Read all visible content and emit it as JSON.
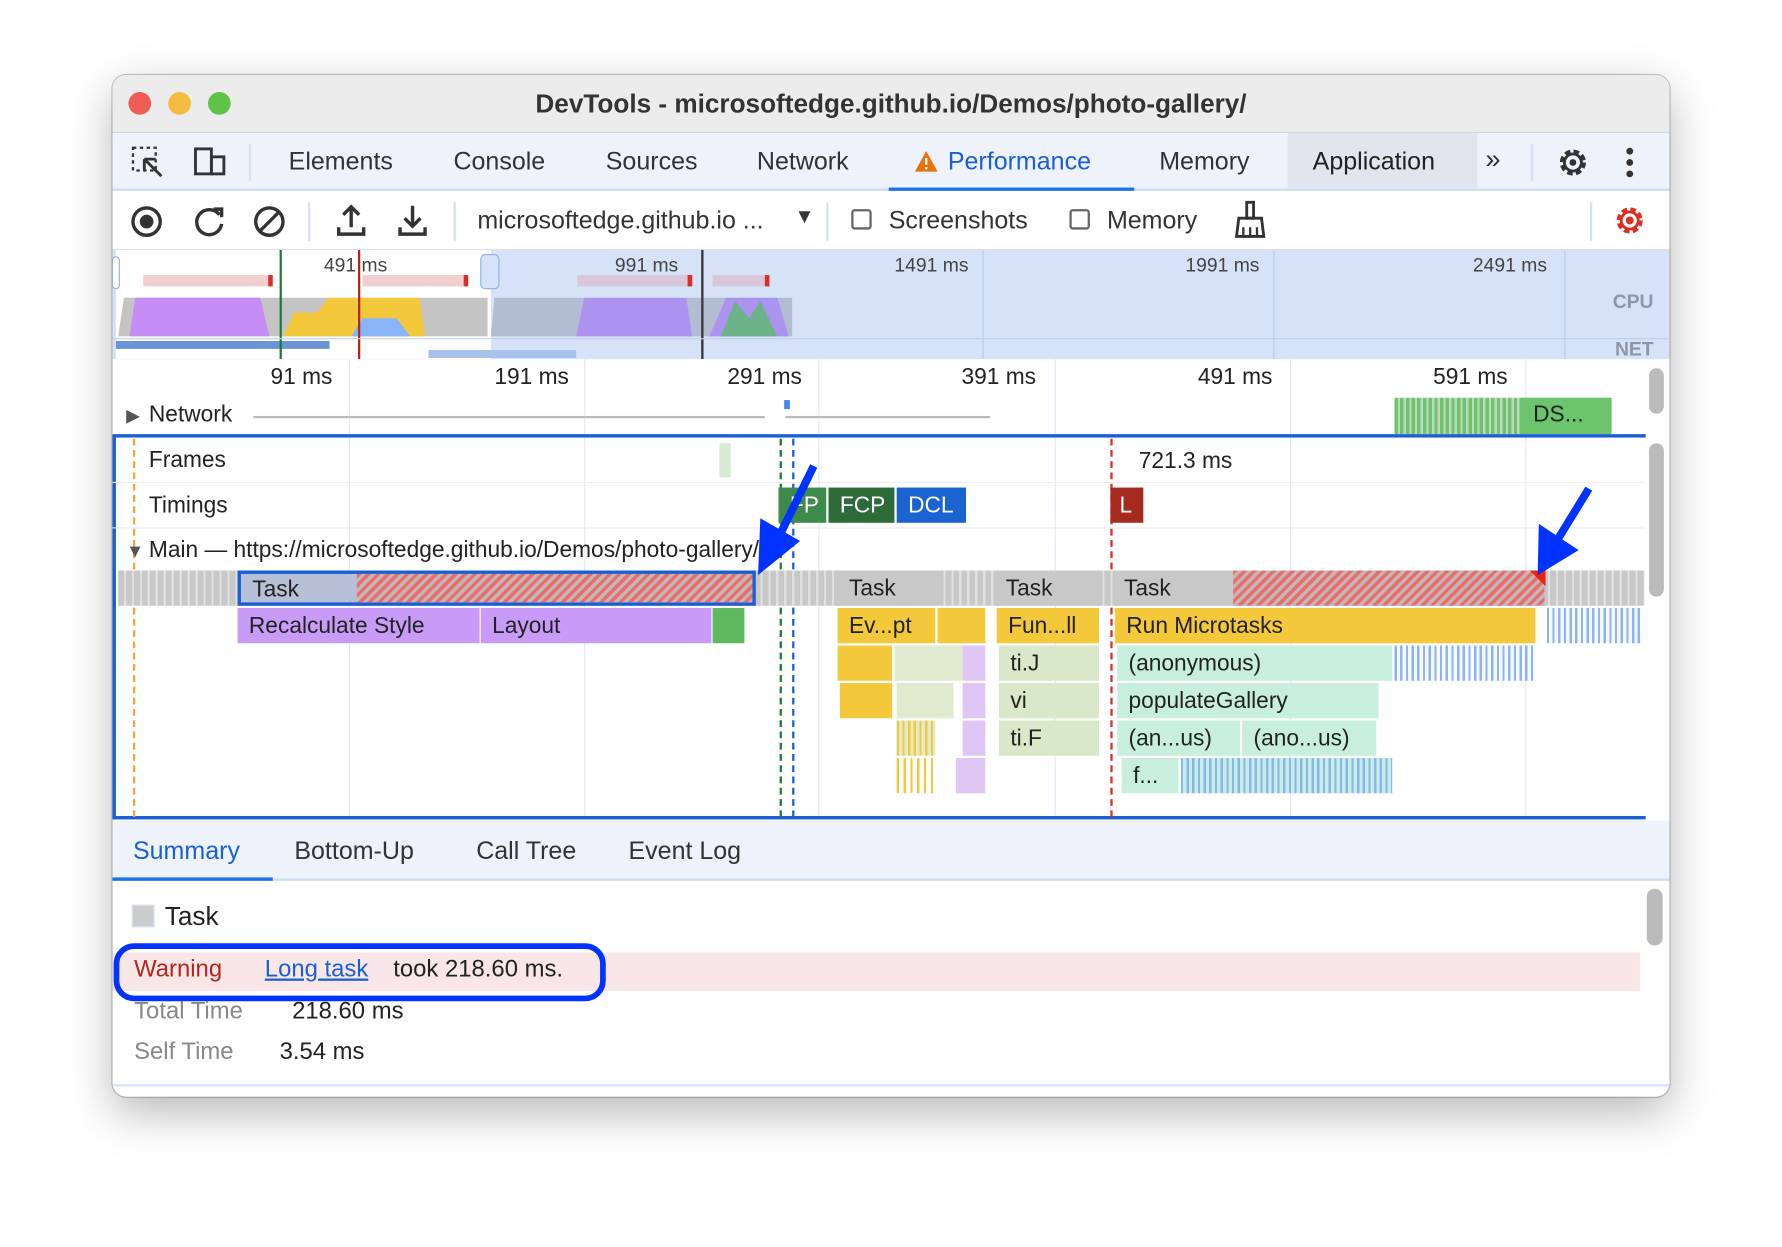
{
  "window": {
    "title": "DevTools - microsoftedge.github.io/Demos/photo-gallery/"
  },
  "tabs": [
    {
      "label": "Elements"
    },
    {
      "label": "Console"
    },
    {
      "label": "Sources"
    },
    {
      "label": "Network"
    },
    {
      "label": "Performance",
      "active": true,
      "icon": "warning-icon"
    },
    {
      "label": "Memory"
    },
    {
      "label": "Application"
    }
  ],
  "toolbar": {
    "profile_select": "microsoftedge.github.io ...",
    "screenshots_label": "Screenshots",
    "screenshots_checked": false,
    "memory_label": "Memory",
    "memory_checked": false
  },
  "overview": {
    "ticks": [
      "491 ms",
      "991 ms",
      "1491 ms",
      "1991 ms",
      "2491 ms"
    ],
    "cpu_label": "CPU",
    "net_label": "NET"
  },
  "ruler": {
    "ticks": [
      "91 ms",
      "191 ms",
      "291 ms",
      "391 ms",
      "491 ms",
      "591 ms"
    ]
  },
  "tracks": {
    "network": "Network",
    "network_item": "DS...",
    "frames": "Frames",
    "frame_time": "721.3 ms",
    "timings": "Timings",
    "markers": [
      "FP",
      "FCP",
      "DCL",
      "L"
    ],
    "main": "Main — https://microsoftedge.github.io/Demos/photo-gallery/"
  },
  "flame": {
    "tasks": [
      "Task",
      "Task",
      "Task",
      "Task"
    ],
    "level1": [
      "Recalculate Style",
      "Layout",
      "Ev...pt",
      "Fun...ll",
      "Run Microtasks"
    ],
    "level2": [
      "ti.J",
      "(anonymous)"
    ],
    "level3": [
      "vi",
      "populateGallery"
    ],
    "level4": [
      "ti.F",
      "(an...us)",
      "(ano...us)"
    ],
    "level5": [
      "f..."
    ]
  },
  "colors": {
    "accent": "#1a73e8",
    "annotation": "#0033ff",
    "task": "#c8c8c8",
    "rendering": "#c89bf7",
    "scripting": "#f4c83b",
    "warning": "#b3261e"
  },
  "bottom_tabs": [
    {
      "label": "Summary",
      "active": true
    },
    {
      "label": "Bottom-Up"
    },
    {
      "label": "Call Tree"
    },
    {
      "label": "Event Log"
    }
  ],
  "summary": {
    "title": "Task",
    "warning_label": "Warning",
    "link": "Long task",
    "warning_text": "took 218.60 ms.",
    "total_label": "Total Time",
    "total_value": "218.60 ms",
    "self_label": "Self Time",
    "self_value": "3.54 ms"
  }
}
